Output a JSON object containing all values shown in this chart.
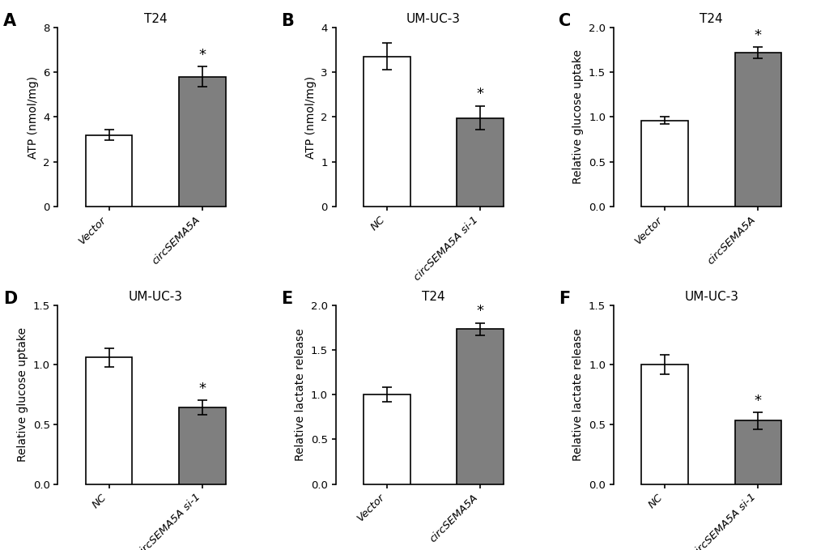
{
  "panels": [
    {
      "label": "A",
      "title": "T24",
      "ylabel": "ATP (nmol/mg)",
      "categories": [
        "Vector",
        "circSEMA5A"
      ],
      "values": [
        3.2,
        5.8
      ],
      "errors": [
        0.25,
        0.45
      ],
      "colors": [
        "white",
        "#7f7f7f"
      ],
      "ylim": [
        0,
        8
      ],
      "yticks": [
        0,
        2,
        4,
        6,
        8
      ],
      "star_on": [
        1
      ]
    },
    {
      "label": "B",
      "title": "UM-UC-3",
      "ylabel": "ATP (nmol/mg)",
      "categories": [
        "NC",
        "circSEMA5A si-1"
      ],
      "values": [
        3.35,
        1.98
      ],
      "errors": [
        0.3,
        0.27
      ],
      "colors": [
        "white",
        "#7f7f7f"
      ],
      "ylim": [
        0,
        4
      ],
      "yticks": [
        0,
        1,
        2,
        3,
        4
      ],
      "star_on": [
        1
      ]
    },
    {
      "label": "C",
      "title": "T24",
      "ylabel": "Relative glucose uptake",
      "categories": [
        "Vector",
        "circSEMA5A"
      ],
      "values": [
        0.96,
        1.72
      ],
      "errors": [
        0.04,
        0.06
      ],
      "colors": [
        "white",
        "#7f7f7f"
      ],
      "ylim": [
        0.0,
        2.0
      ],
      "yticks": [
        0.0,
        0.5,
        1.0,
        1.5,
        2.0
      ],
      "star_on": [
        1
      ]
    },
    {
      "label": "D",
      "title": "UM-UC-3",
      "ylabel": "Relative glucose uptake",
      "categories": [
        "NC",
        "circSEMA5A si-1"
      ],
      "values": [
        1.06,
        0.64
      ],
      "errors": [
        0.08,
        0.06
      ],
      "colors": [
        "white",
        "#7f7f7f"
      ],
      "ylim": [
        0.0,
        1.5
      ],
      "yticks": [
        0.0,
        0.5,
        1.0,
        1.5
      ],
      "star_on": [
        1
      ]
    },
    {
      "label": "E",
      "title": "T24",
      "ylabel": "Relative lactate release",
      "categories": [
        "Vector",
        "circSEMA5A"
      ],
      "values": [
        1.0,
        1.73
      ],
      "errors": [
        0.08,
        0.07
      ],
      "colors": [
        "white",
        "#7f7f7f"
      ],
      "ylim": [
        0.0,
        2.0
      ],
      "yticks": [
        0.0,
        0.5,
        1.0,
        1.5,
        2.0
      ],
      "star_on": [
        1
      ]
    },
    {
      "label": "F",
      "title": "UM-UC-3",
      "ylabel": "Relative lactate release",
      "categories": [
        "NC",
        "circSEMA5A si-1"
      ],
      "values": [
        1.0,
        0.53
      ],
      "errors": [
        0.08,
        0.07
      ],
      "colors": [
        "white",
        "#7f7f7f"
      ],
      "ylim": [
        0.0,
        1.5
      ],
      "yticks": [
        0.0,
        0.5,
        1.0,
        1.5
      ],
      "star_on": [
        1
      ]
    }
  ],
  "bar_width": 0.5,
  "bar_edgecolor": "black",
  "bar_linewidth": 1.2,
  "error_capsize": 4,
  "error_linewidth": 1.2,
  "error_color": "black",
  "tick_fontsize": 9.5,
  "label_fontsize": 10,
  "title_fontsize": 11,
  "panel_label_fontsize": 15,
  "star_fontsize": 13,
  "background_color": "white"
}
